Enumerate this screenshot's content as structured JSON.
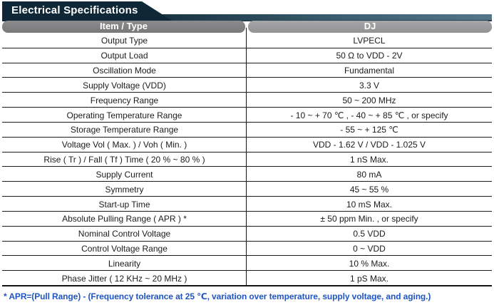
{
  "page_title": "Electrical Specifications",
  "colors": {
    "tab_navy": "#0f2736",
    "band_teal_right": "#547689",
    "pill_item_gray": "#7e7e80",
    "pill_dj_gray": "#9b9b9d",
    "table_border": "#1a1a1a",
    "footnote_blue": "#1f55c5"
  },
  "table": {
    "columns": [
      "Item / Type",
      "DJ"
    ],
    "rows": [
      {
        "item": "Output Type",
        "value": "LVPECL"
      },
      {
        "item": "Output Load",
        "value": "50 Ω to VDD - 2V"
      },
      {
        "item": "Oscillation Mode",
        "value": "Fundamental"
      },
      {
        "item": "Supply Voltage (VDD)",
        "value": "3.3 V"
      },
      {
        "item": "Frequency Range",
        "value": "50 ~ 200 MHz"
      },
      {
        "item": "Operating Temperature Range",
        "value": "- 10 ~ + 70 ℃ , - 40 ~ + 85 ℃ , or specify"
      },
      {
        "item": "Storage Temperature Range",
        "value": "- 55 ~ + 125 ℃"
      },
      {
        "item": "Voltage Vol ( Max. ) / Voh ( Min. )",
        "value": "VDD - 1.62 V / VDD - 1.025 V"
      },
      {
        "item": "Rise ( Tr ) / Fall ( Tf ) Time ( 20 % ~ 80 % )",
        "value": "1 nS Max."
      },
      {
        "item": "Supply Current",
        "value": "80 mA"
      },
      {
        "item": "Symmetry",
        "value": "45 ~ 55 %"
      },
      {
        "item": "Start-up Time",
        "value": "10 mS Max."
      },
      {
        "item": "Absolute Pulling Range ( APR ) *",
        "value": "± 50 ppm Min. , or specify"
      },
      {
        "item": "Nominal Control Voltage",
        "value": "0.5 VDD"
      },
      {
        "item": "Control Voltage Range",
        "value": "0 ~ VDD"
      },
      {
        "item": "Linearity",
        "value": "10 % Max."
      },
      {
        "item": "Phase Jitter ( 12 KHz ~ 20 MHz )",
        "value": "1 pS Max."
      }
    ]
  },
  "footnote": "* APR=(Pull Range) - (Frequency tolerance at 25 ℃, variation over temperature, supply voltage, and aging.)"
}
